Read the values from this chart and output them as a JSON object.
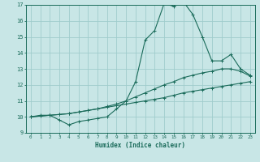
{
  "title": "",
  "xlabel": "Humidex (Indice chaleur)",
  "xlim": [
    -0.5,
    23.5
  ],
  "ylim": [
    9,
    17
  ],
  "yticks": [
    9,
    10,
    11,
    12,
    13,
    14,
    15,
    16,
    17
  ],
  "xticks": [
    0,
    1,
    2,
    3,
    4,
    5,
    6,
    7,
    8,
    9,
    10,
    11,
    12,
    13,
    14,
    15,
    16,
    17,
    18,
    19,
    20,
    21,
    22,
    23
  ],
  "bg_color": "#c8e6e6",
  "grid_color": "#a0cccc",
  "line_color": "#1a6b5a",
  "line1_x": [
    0,
    1,
    2,
    3,
    4,
    5,
    6,
    7,
    8,
    9,
    10,
    11,
    12,
    13,
    14,
    15,
    16,
    17,
    18,
    19,
    20,
    21,
    22,
    23
  ],
  "line1_y": [
    10.0,
    10.1,
    10.1,
    9.8,
    9.5,
    9.7,
    9.8,
    9.9,
    10.0,
    10.5,
    11.0,
    12.2,
    14.8,
    15.4,
    17.1,
    16.9,
    17.2,
    16.4,
    15.0,
    13.5,
    13.5,
    13.9,
    13.0,
    12.6
  ],
  "line2_x": [
    0,
    2,
    3,
    4,
    5,
    6,
    7,
    8,
    9,
    10,
    11,
    12,
    13,
    14,
    15,
    16,
    17,
    18,
    19,
    20,
    21,
    22,
    23
  ],
  "line2_y": [
    10.0,
    10.1,
    10.15,
    10.2,
    10.3,
    10.4,
    10.5,
    10.65,
    10.8,
    11.0,
    11.25,
    11.5,
    11.75,
    12.0,
    12.2,
    12.45,
    12.6,
    12.75,
    12.85,
    13.0,
    13.0,
    12.85,
    12.55
  ],
  "line3_x": [
    0,
    1,
    2,
    3,
    4,
    5,
    6,
    7,
    8,
    9,
    10,
    11,
    12,
    13,
    14,
    15,
    16,
    17,
    18,
    19,
    20,
    21,
    22,
    23
  ],
  "line3_y": [
    10.0,
    10.05,
    10.1,
    10.15,
    10.2,
    10.3,
    10.4,
    10.5,
    10.6,
    10.7,
    10.8,
    10.9,
    11.0,
    11.1,
    11.2,
    11.35,
    11.5,
    11.6,
    11.7,
    11.8,
    11.9,
    12.0,
    12.1,
    12.2
  ]
}
